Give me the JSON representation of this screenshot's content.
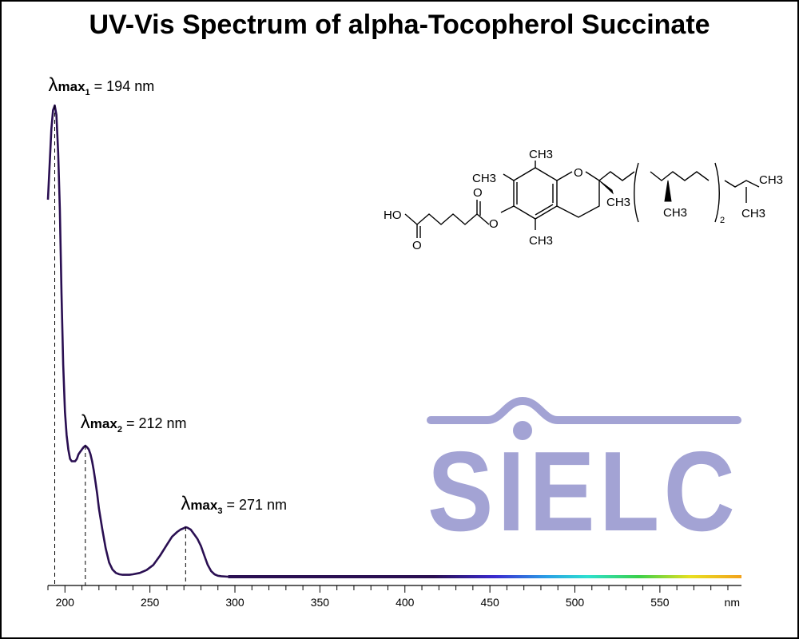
{
  "title": "UV-Vis Spectrum of alpha-Tocopherol Succinate",
  "colors": {
    "line": "#2a0f52",
    "logo": "#a3a3d4",
    "axis": "#000000"
  },
  "logo_text": "SIELC",
  "molecule": {
    "labels": [
      "HO",
      "O",
      "O",
      "O",
      "O",
      "CH3",
      "CH3",
      "CH3",
      "CH3",
      "CH3",
      "CH3",
      "CH3",
      "2"
    ]
  },
  "chart_data": {
    "type": "line",
    "title": "UV-Vis Spectrum of alpha-Tocopherol Succinate",
    "xlabel": "nm",
    "ylabel": "",
    "xlim": [
      190,
      1000
    ],
    "x_axis_range_shown": [
      190,
      598
    ],
    "ylim": [
      0,
      1
    ],
    "grid": false,
    "x_ticks": [
      200,
      250,
      300,
      350,
      400,
      450,
      500,
      550
    ],
    "x_unit_label": "nm",
    "series": [
      {
        "x": [
          190,
          192,
          193,
          194,
          195,
          196,
          197,
          198,
          199,
          200,
          201,
          202,
          203,
          204,
          205,
          206,
          207,
          208,
          209,
          210,
          211,
          212,
          213,
          214,
          215,
          216,
          217,
          218,
          219,
          220,
          222,
          224,
          226,
          228,
          230,
          232,
          234,
          236,
          238,
          240,
          244,
          248,
          252,
          256,
          260,
          263,
          266,
          268,
          270,
          271,
          272,
          274,
          276,
          278,
          280,
          282,
          284,
          286,
          288,
          290,
          292,
          296,
          300,
          320,
          350,
          400,
          450,
          500,
          550,
          598
        ],
        "y": [
          0.8,
          0.95,
          0.99,
          1.0,
          0.98,
          0.9,
          0.78,
          0.6,
          0.45,
          0.35,
          0.3,
          0.27,
          0.25,
          0.245,
          0.245,
          0.245,
          0.25,
          0.26,
          0.265,
          0.27,
          0.275,
          0.278,
          0.275,
          0.27,
          0.26,
          0.245,
          0.225,
          0.2,
          0.175,
          0.145,
          0.1,
          0.06,
          0.03,
          0.015,
          0.008,
          0.005,
          0.004,
          0.004,
          0.004,
          0.005,
          0.008,
          0.014,
          0.025,
          0.045,
          0.068,
          0.085,
          0.095,
          0.1,
          0.103,
          0.105,
          0.104,
          0.1,
          0.09,
          0.08,
          0.065,
          0.045,
          0.025,
          0.012,
          0.005,
          0.002,
          0.001,
          0.0,
          0.0,
          0.0,
          0.0,
          0.0,
          0.0,
          0.0,
          0.0,
          0.0
        ]
      }
    ],
    "annotations": [
      {
        "x": 194,
        "prefix": "λ",
        "sub": "max",
        "subsub": "1",
        "text": " = 194 nm"
      },
      {
        "x": 212,
        "prefix": "λ",
        "sub": "max",
        "subsub": "2",
        "text": " = 212 nm"
      },
      {
        "x": 271,
        "prefix": "λ",
        "sub": "max",
        "subsub": "3",
        "text": " = 271 nm"
      }
    ]
  }
}
